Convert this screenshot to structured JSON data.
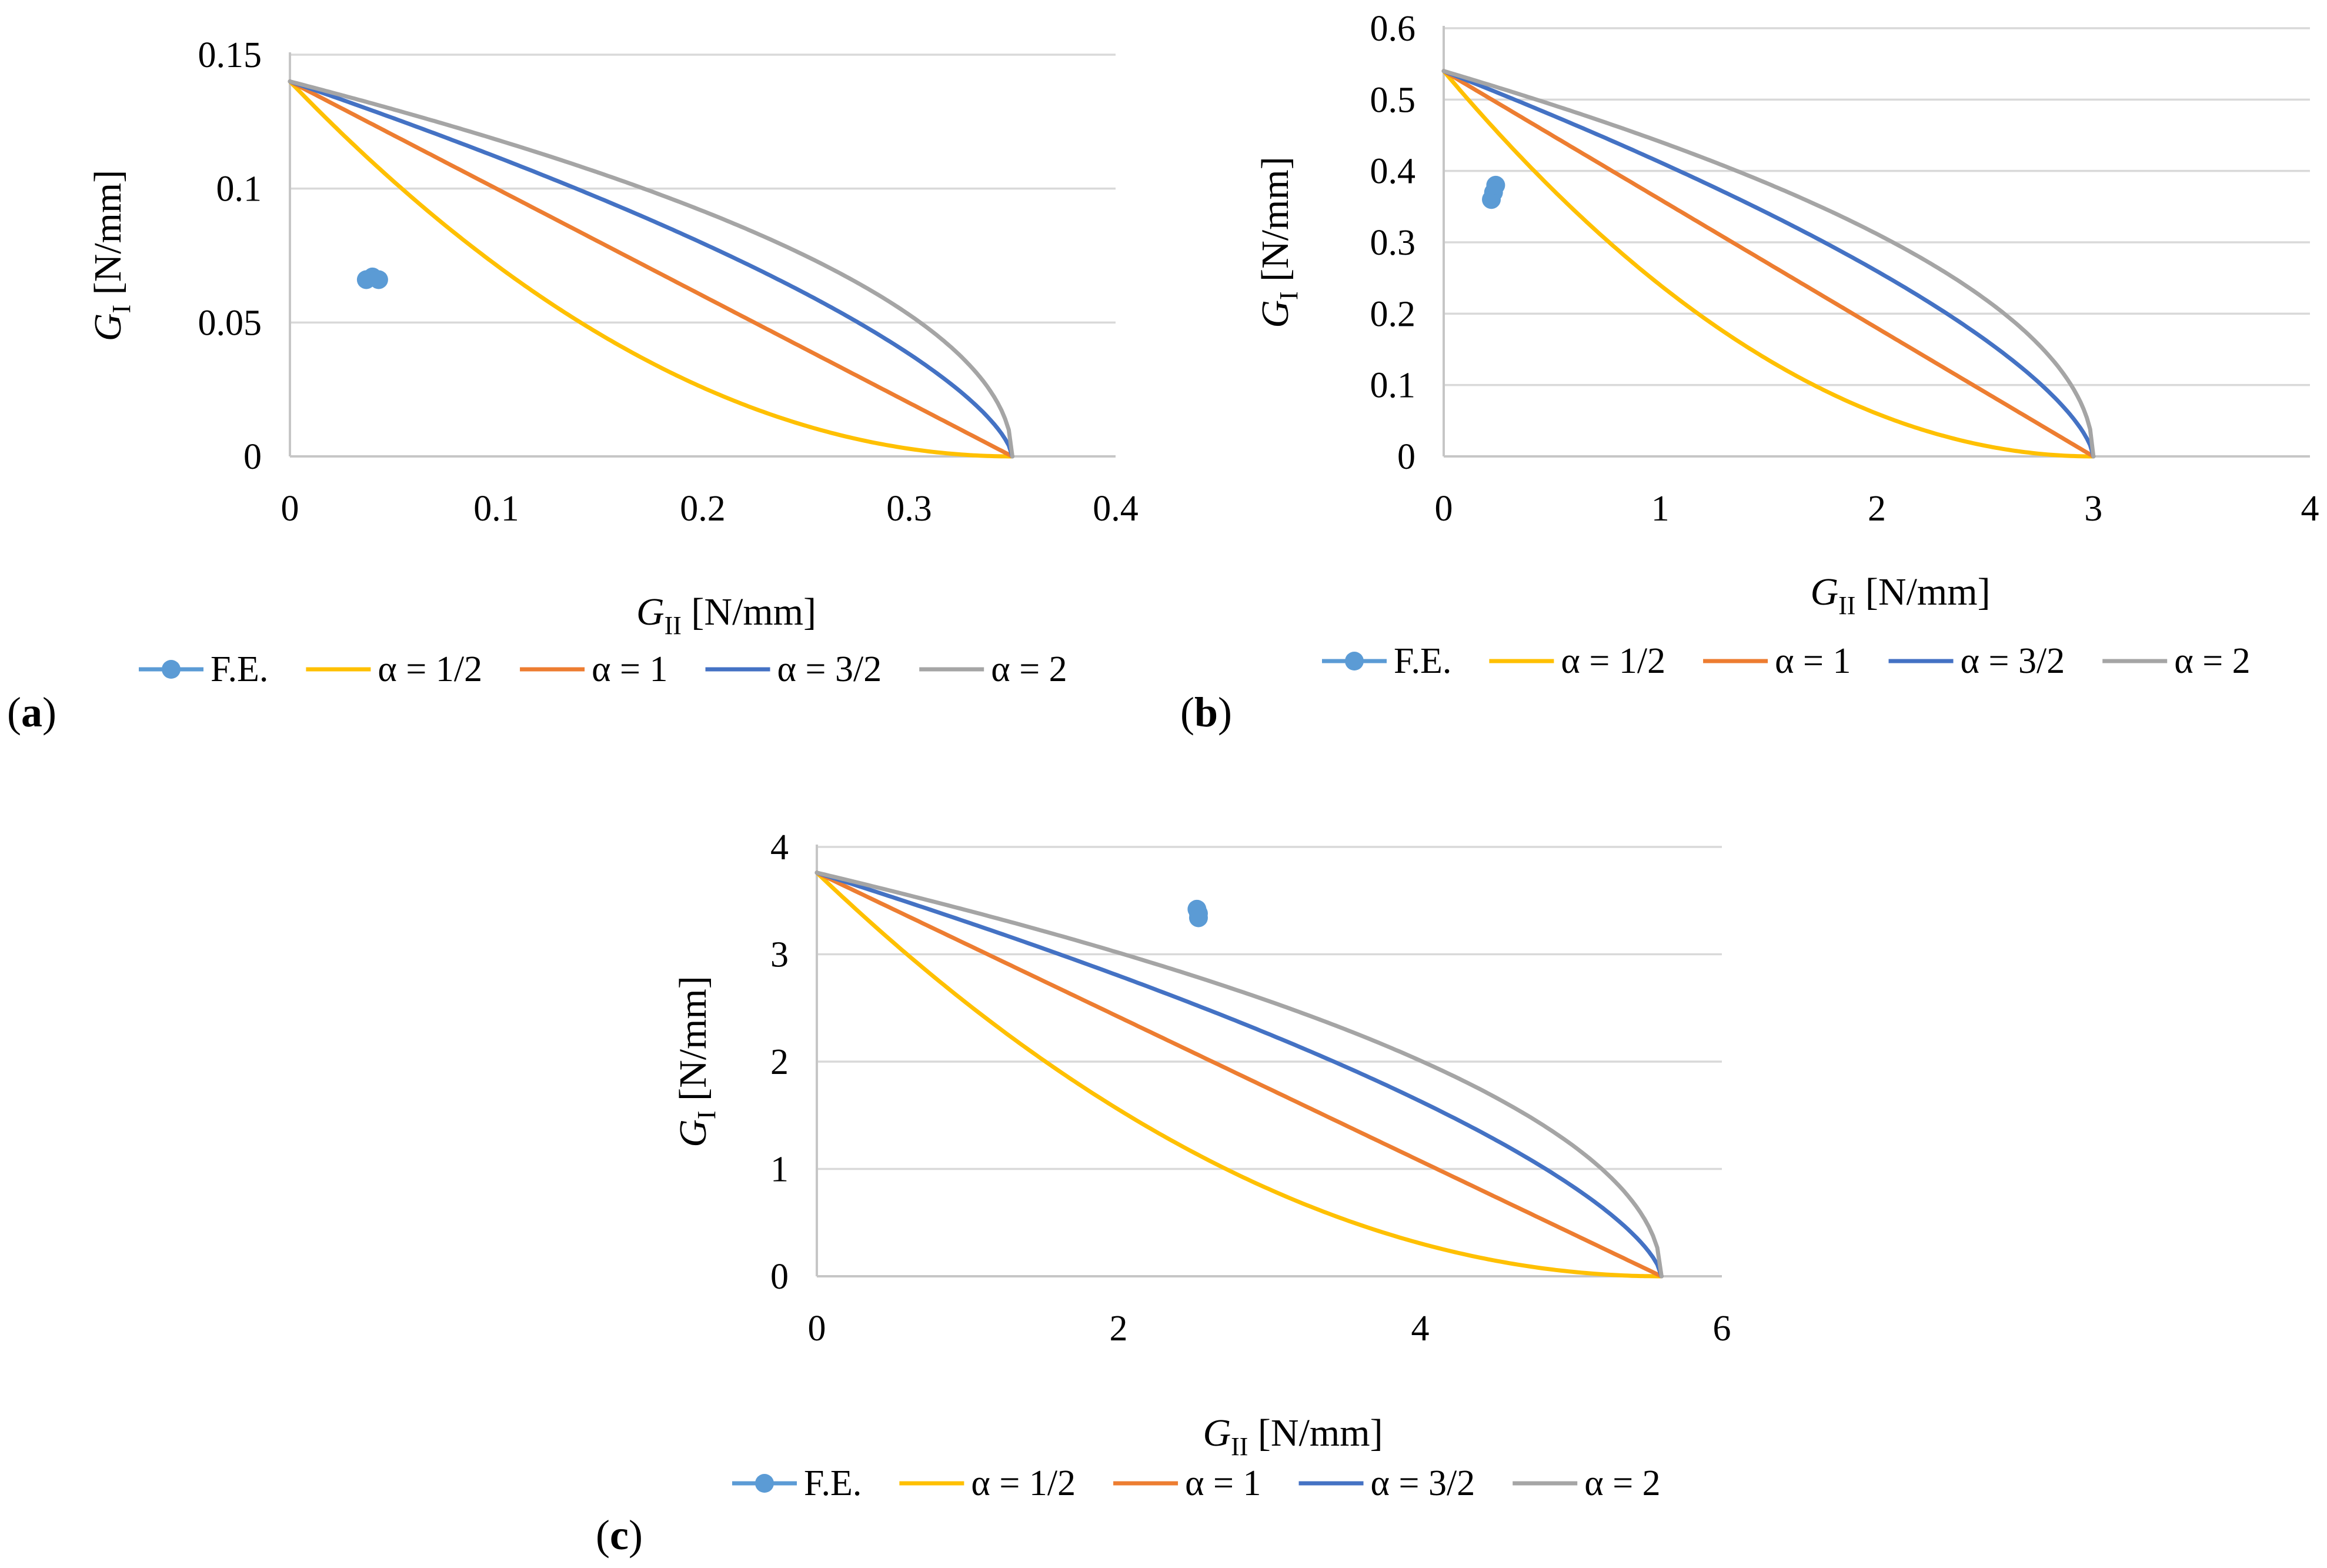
{
  "chart_data": [
    {
      "type": "line",
      "panel_label": "(a)",
      "x_title": {
        "symbol": "G",
        "sub": "II",
        "unit": " [N/mm]"
      },
      "y_title": {
        "symbol": "G",
        "sub": "I",
        "unit": " [N/mm]"
      },
      "xlim": [
        0,
        0.4
      ],
      "ylim": [
        0,
        0.15
      ],
      "x_ticks": [
        "0",
        "0.1",
        "0.2",
        "0.3",
        "0.4"
      ],
      "y_ticks": [
        "0",
        "0.05",
        "0.1",
        "0.15"
      ],
      "GIc": 0.14,
      "GIIc": 0.35,
      "series": [
        {
          "name": "F.E.",
          "color": "#5b9bd5",
          "kind": "scatter",
          "x": [
            0.037,
            0.04,
            0.043
          ],
          "y": [
            0.066,
            0.067,
            0.066
          ]
        },
        {
          "name": "α = 1/2",
          "color": "#ffc000",
          "alpha": 0.5
        },
        {
          "name": "α = 1",
          "color": "#ed7d31",
          "alpha": 1
        },
        {
          "name": "α = 3/2",
          "color": "#4472c4",
          "alpha": 1.5
        },
        {
          "name": "α = 2",
          "color": "#a5a5a5",
          "alpha": 2
        }
      ]
    },
    {
      "type": "line",
      "panel_label": "(b)",
      "x_title": {
        "symbol": "G",
        "sub": "II",
        "unit": " [N/mm]"
      },
      "y_title": {
        "symbol": "G",
        "sub": "I",
        "unit": " [N/mm]"
      },
      "xlim": [
        0,
        4
      ],
      "ylim": [
        0,
        0.6
      ],
      "x_ticks": [
        "0",
        "1",
        "2",
        "3",
        "4"
      ],
      "y_ticks": [
        "0",
        "0.1",
        "0.2",
        "0.3",
        "0.4",
        "0.5",
        "0.6"
      ],
      "GIc": 0.54,
      "GIIc": 3.0,
      "series": [
        {
          "name": "F.E.",
          "color": "#5b9bd5",
          "kind": "scatter",
          "x": [
            0.22,
            0.23,
            0.24
          ],
          "y": [
            0.36,
            0.37,
            0.38
          ]
        },
        {
          "name": "α = 1/2",
          "color": "#ffc000",
          "alpha": 0.5
        },
        {
          "name": "α = 1",
          "color": "#ed7d31",
          "alpha": 1
        },
        {
          "name": "α = 3/2",
          "color": "#4472c4",
          "alpha": 1.5
        },
        {
          "name": "α = 2",
          "color": "#a5a5a5",
          "alpha": 2
        }
      ]
    },
    {
      "type": "line",
      "panel_label": "(c)",
      "x_title": {
        "symbol": "G",
        "sub": "II",
        "unit": " [N/mm]"
      },
      "y_title": {
        "symbol": "G",
        "sub": "I",
        "unit": " [N/mm]"
      },
      "xlim": [
        0,
        6
      ],
      "ylim": [
        0,
        4
      ],
      "x_ticks": [
        "0",
        "2",
        "4",
        "6"
      ],
      "y_ticks": [
        "0",
        "1",
        "2",
        "3",
        "4"
      ],
      "GIc": 3.76,
      "GIIc": 5.6,
      "series": [
        {
          "name": "F.E.",
          "color": "#5b9bd5",
          "kind": "scatter",
          "x": [
            2.52,
            2.53,
            2.53
          ],
          "y": [
            3.42,
            3.38,
            3.34
          ]
        },
        {
          "name": "α = 1/2",
          "color": "#ffc000",
          "alpha": 0.5
        },
        {
          "name": "α = 1",
          "color": "#ed7d31",
          "alpha": 1
        },
        {
          "name": "α = 3/2",
          "color": "#4472c4",
          "alpha": 1.5
        },
        {
          "name": "α = 2",
          "color": "#a5a5a5",
          "alpha": 2
        }
      ]
    }
  ]
}
